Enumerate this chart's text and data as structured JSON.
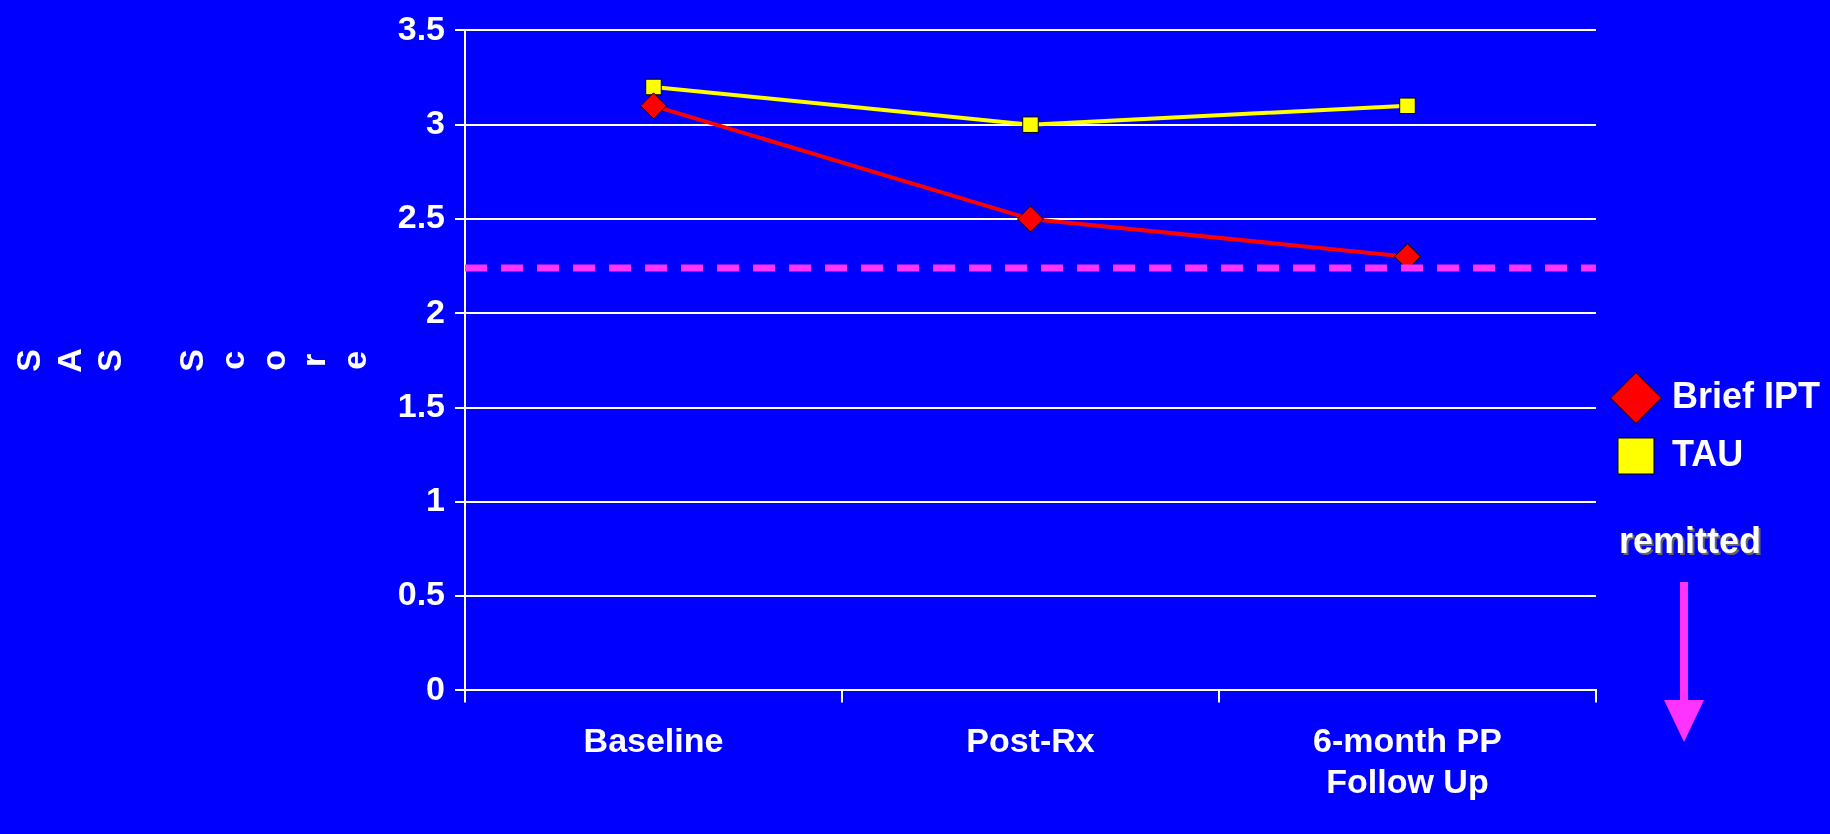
{
  "chart_data": {
    "type": "line",
    "categories": [
      "Baseline",
      "Post-Rx",
      "6-month PP Follow Up"
    ],
    "series": [
      {
        "name": "Brief IPT",
        "color": "#ff0000",
        "marker": "diamond",
        "values": [
          3.1,
          2.5,
          2.3
        ]
      },
      {
        "name": "TAU",
        "color": "#ffff00",
        "marker": "square",
        "values": [
          3.2,
          3.0,
          3.1
        ]
      }
    ],
    "ylabel": "SAS Score",
    "ylim": [
      0,
      3.5
    ],
    "yticks": [
      0,
      0.5,
      1,
      1.5,
      2,
      2.5,
      3,
      3.5
    ],
    "grid": "y",
    "legend": "right",
    "ref_lines": [
      {
        "axis": "y",
        "value": 2.24,
        "color": "#ff33ff",
        "line_style": "dashed"
      }
    ],
    "annotations": [
      "remitted"
    ]
  }
}
